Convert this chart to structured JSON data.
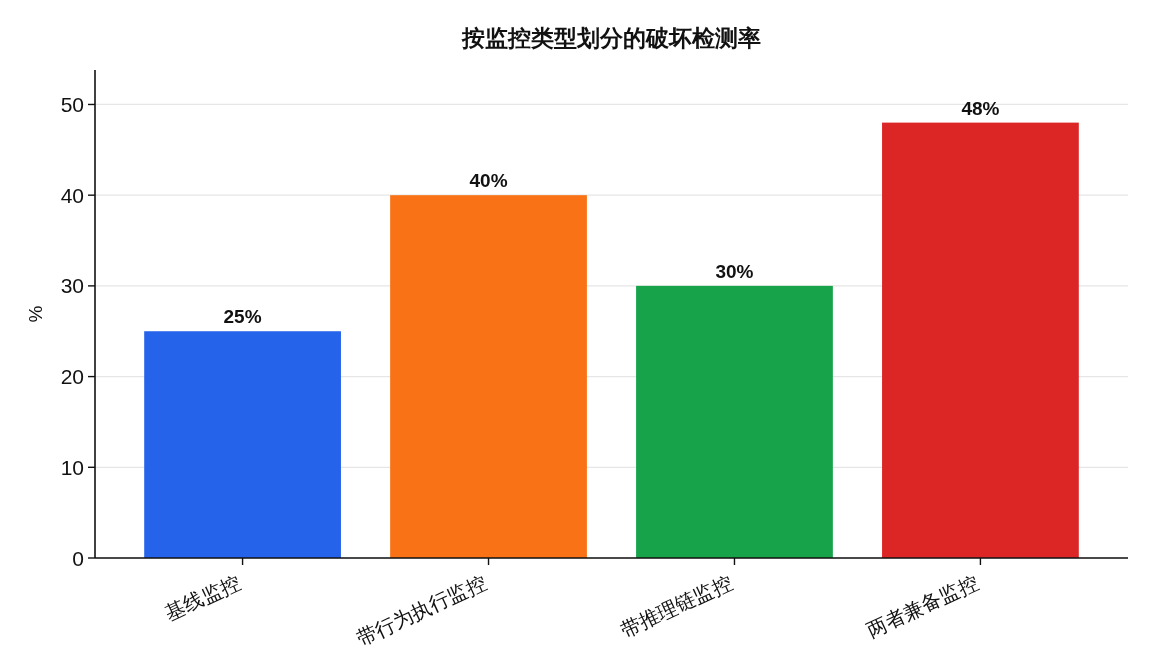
{
  "chart_data": {
    "type": "bar",
    "title": "按监控类型划分的破坏检测率",
    "ylabel": "%",
    "categories": [
      "基线监控",
      "带行为执行监控",
      "带推理链监控",
      "两者兼备监控"
    ],
    "values": [
      25,
      40,
      30,
      48
    ],
    "colors": [
      "#2563eb",
      "#f97316",
      "#16a34a",
      "#dc2626"
    ],
    "value_labels": [
      "25%",
      "40%",
      "30%",
      "48%"
    ],
    "ylim": [
      0,
      53.8
    ],
    "yticks": [
      0,
      10,
      20,
      30,
      40,
      50
    ],
    "grid": "y"
  }
}
